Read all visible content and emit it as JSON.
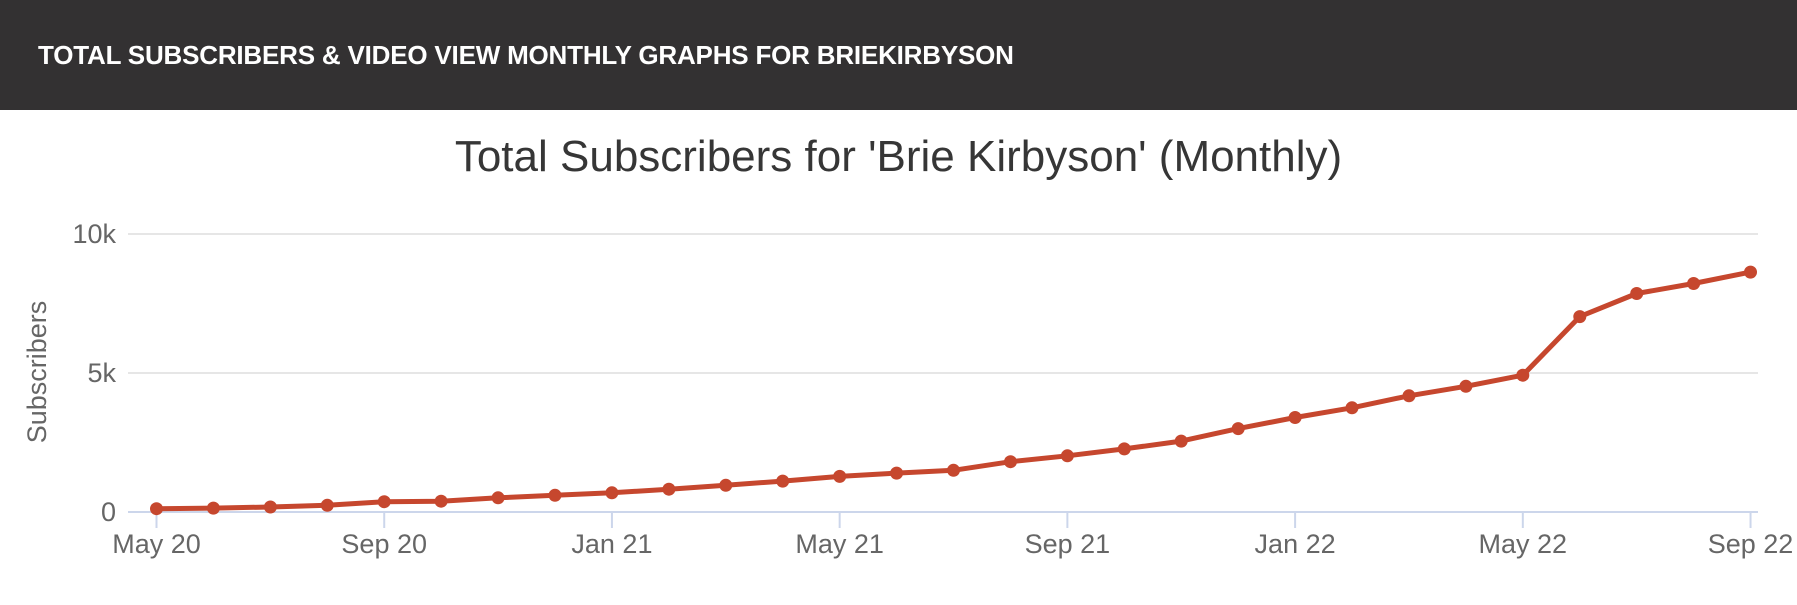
{
  "header": {
    "title": "TOTAL SUBSCRIBERS & VIDEO VIEW MONTHLY GRAPHS FOR BRIEKIRBYSON"
  },
  "colors": {
    "header_bg": "#333132",
    "header_text": "#ffffff",
    "chart_title": "#363636",
    "axis_label": "#666666",
    "grid_line": "#e6e6e6",
    "axis_line": "#ccd6eb",
    "series_line": "#c6472e"
  },
  "chart_data": {
    "type": "line",
    "title": "Total Subscribers for 'Brie Kirbyson' (Monthly)",
    "xlabel": "",
    "ylabel": "Subscribers",
    "categories": [
      "May 20",
      "Jun 20",
      "Jul 20",
      "Aug 20",
      "Sep 20",
      "Oct 20",
      "Nov 20",
      "Dec 20",
      "Jan 21",
      "Feb 21",
      "Mar 21",
      "Apr 21",
      "May 21",
      "Jun 21",
      "Jul 21",
      "Aug 21",
      "Sep 21",
      "Oct 21",
      "Nov 21",
      "Dec 21",
      "Jan 22",
      "Feb 22",
      "Mar 22",
      "Apr 22",
      "May 22",
      "Jun 22",
      "Jul 22",
      "Aug 22",
      "Sep 22"
    ],
    "values": [
      120,
      140,
      180,
      240,
      370,
      390,
      510,
      600,
      690,
      820,
      960,
      1110,
      1280,
      1400,
      1500,
      1810,
      2020,
      2270,
      2550,
      3000,
      3400,
      3750,
      4180,
      4520,
      4920,
      7030,
      7860,
      8220,
      8630
    ],
    "x_tick_labels": [
      "May 20",
      "Sep 20",
      "Jan 21",
      "May 21",
      "Sep 21",
      "Jan 22",
      "May 22",
      "Sep 22"
    ],
    "x_tick_every": 4,
    "y_ticks": [
      {
        "value": 0,
        "label": "0"
      },
      {
        "value": 5000,
        "label": "5k"
      },
      {
        "value": 10000,
        "label": "10k"
      }
    ],
    "ylim": [
      0,
      10000
    ],
    "grid": true,
    "legend": false,
    "markers": true
  }
}
